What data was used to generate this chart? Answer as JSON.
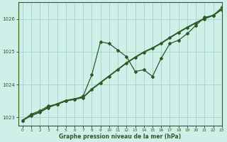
{
  "xlabel": "Graphe pression niveau de la mer (hPa)",
  "bg_color": "#cff0e8",
  "grid_color": "#a8d8c8",
  "line_color": "#2d5a27",
  "xlim": [
    -0.5,
    23
  ],
  "ylim": [
    1022.75,
    1026.5
  ],
  "yticks": [
    1023,
    1024,
    1025,
    1026
  ],
  "xticks": [
    0,
    1,
    2,
    3,
    4,
    5,
    6,
    7,
    8,
    9,
    10,
    11,
    12,
    13,
    14,
    15,
    16,
    17,
    18,
    19,
    20,
    21,
    22,
    23
  ],
  "line_wiggly_x": [
    0,
    1,
    2,
    3,
    4,
    5,
    6,
    7,
    8,
    9,
    10,
    11,
    12,
    13,
    14,
    15,
    16,
    17,
    18,
    19,
    20,
    21,
    22,
    23
  ],
  "line_wiggly_y": [
    1022.9,
    1023.1,
    1023.2,
    1023.35,
    1023.4,
    1023.5,
    1023.55,
    1023.65,
    1024.3,
    1025.3,
    1025.25,
    1025.05,
    1024.85,
    1024.4,
    1024.45,
    1024.25,
    1024.8,
    1025.25,
    1025.35,
    1025.55,
    1025.8,
    1026.05,
    1026.1,
    1026.35
  ],
  "line_trend1_x": [
    0,
    1,
    2,
    3,
    4,
    5,
    6,
    7,
    8,
    9,
    10,
    11,
    12,
    13,
    14,
    15,
    16,
    17,
    18,
    19,
    20,
    21,
    22,
    23
  ],
  "line_trend1_y": [
    1022.9,
    1023.05,
    1023.15,
    1023.3,
    1023.4,
    1023.5,
    1023.55,
    1023.6,
    1023.85,
    1024.05,
    1024.25,
    1024.45,
    1024.65,
    1024.82,
    1024.98,
    1025.1,
    1025.25,
    1025.42,
    1025.58,
    1025.73,
    1025.87,
    1026.0,
    1026.1,
    1026.28
  ],
  "line_trend2_x": [
    0,
    1,
    2,
    3,
    4,
    5,
    6,
    7,
    8,
    9,
    10,
    11,
    12,
    13,
    14,
    15,
    16,
    17,
    18,
    19,
    20,
    21,
    22,
    23
  ],
  "line_trend2_y": [
    1022.92,
    1023.07,
    1023.17,
    1023.32,
    1023.42,
    1023.52,
    1023.57,
    1023.62,
    1023.87,
    1024.07,
    1024.27,
    1024.47,
    1024.67,
    1024.84,
    1025.0,
    1025.12,
    1025.27,
    1025.44,
    1025.6,
    1025.75,
    1025.89,
    1026.02,
    1026.12,
    1026.3
  ]
}
